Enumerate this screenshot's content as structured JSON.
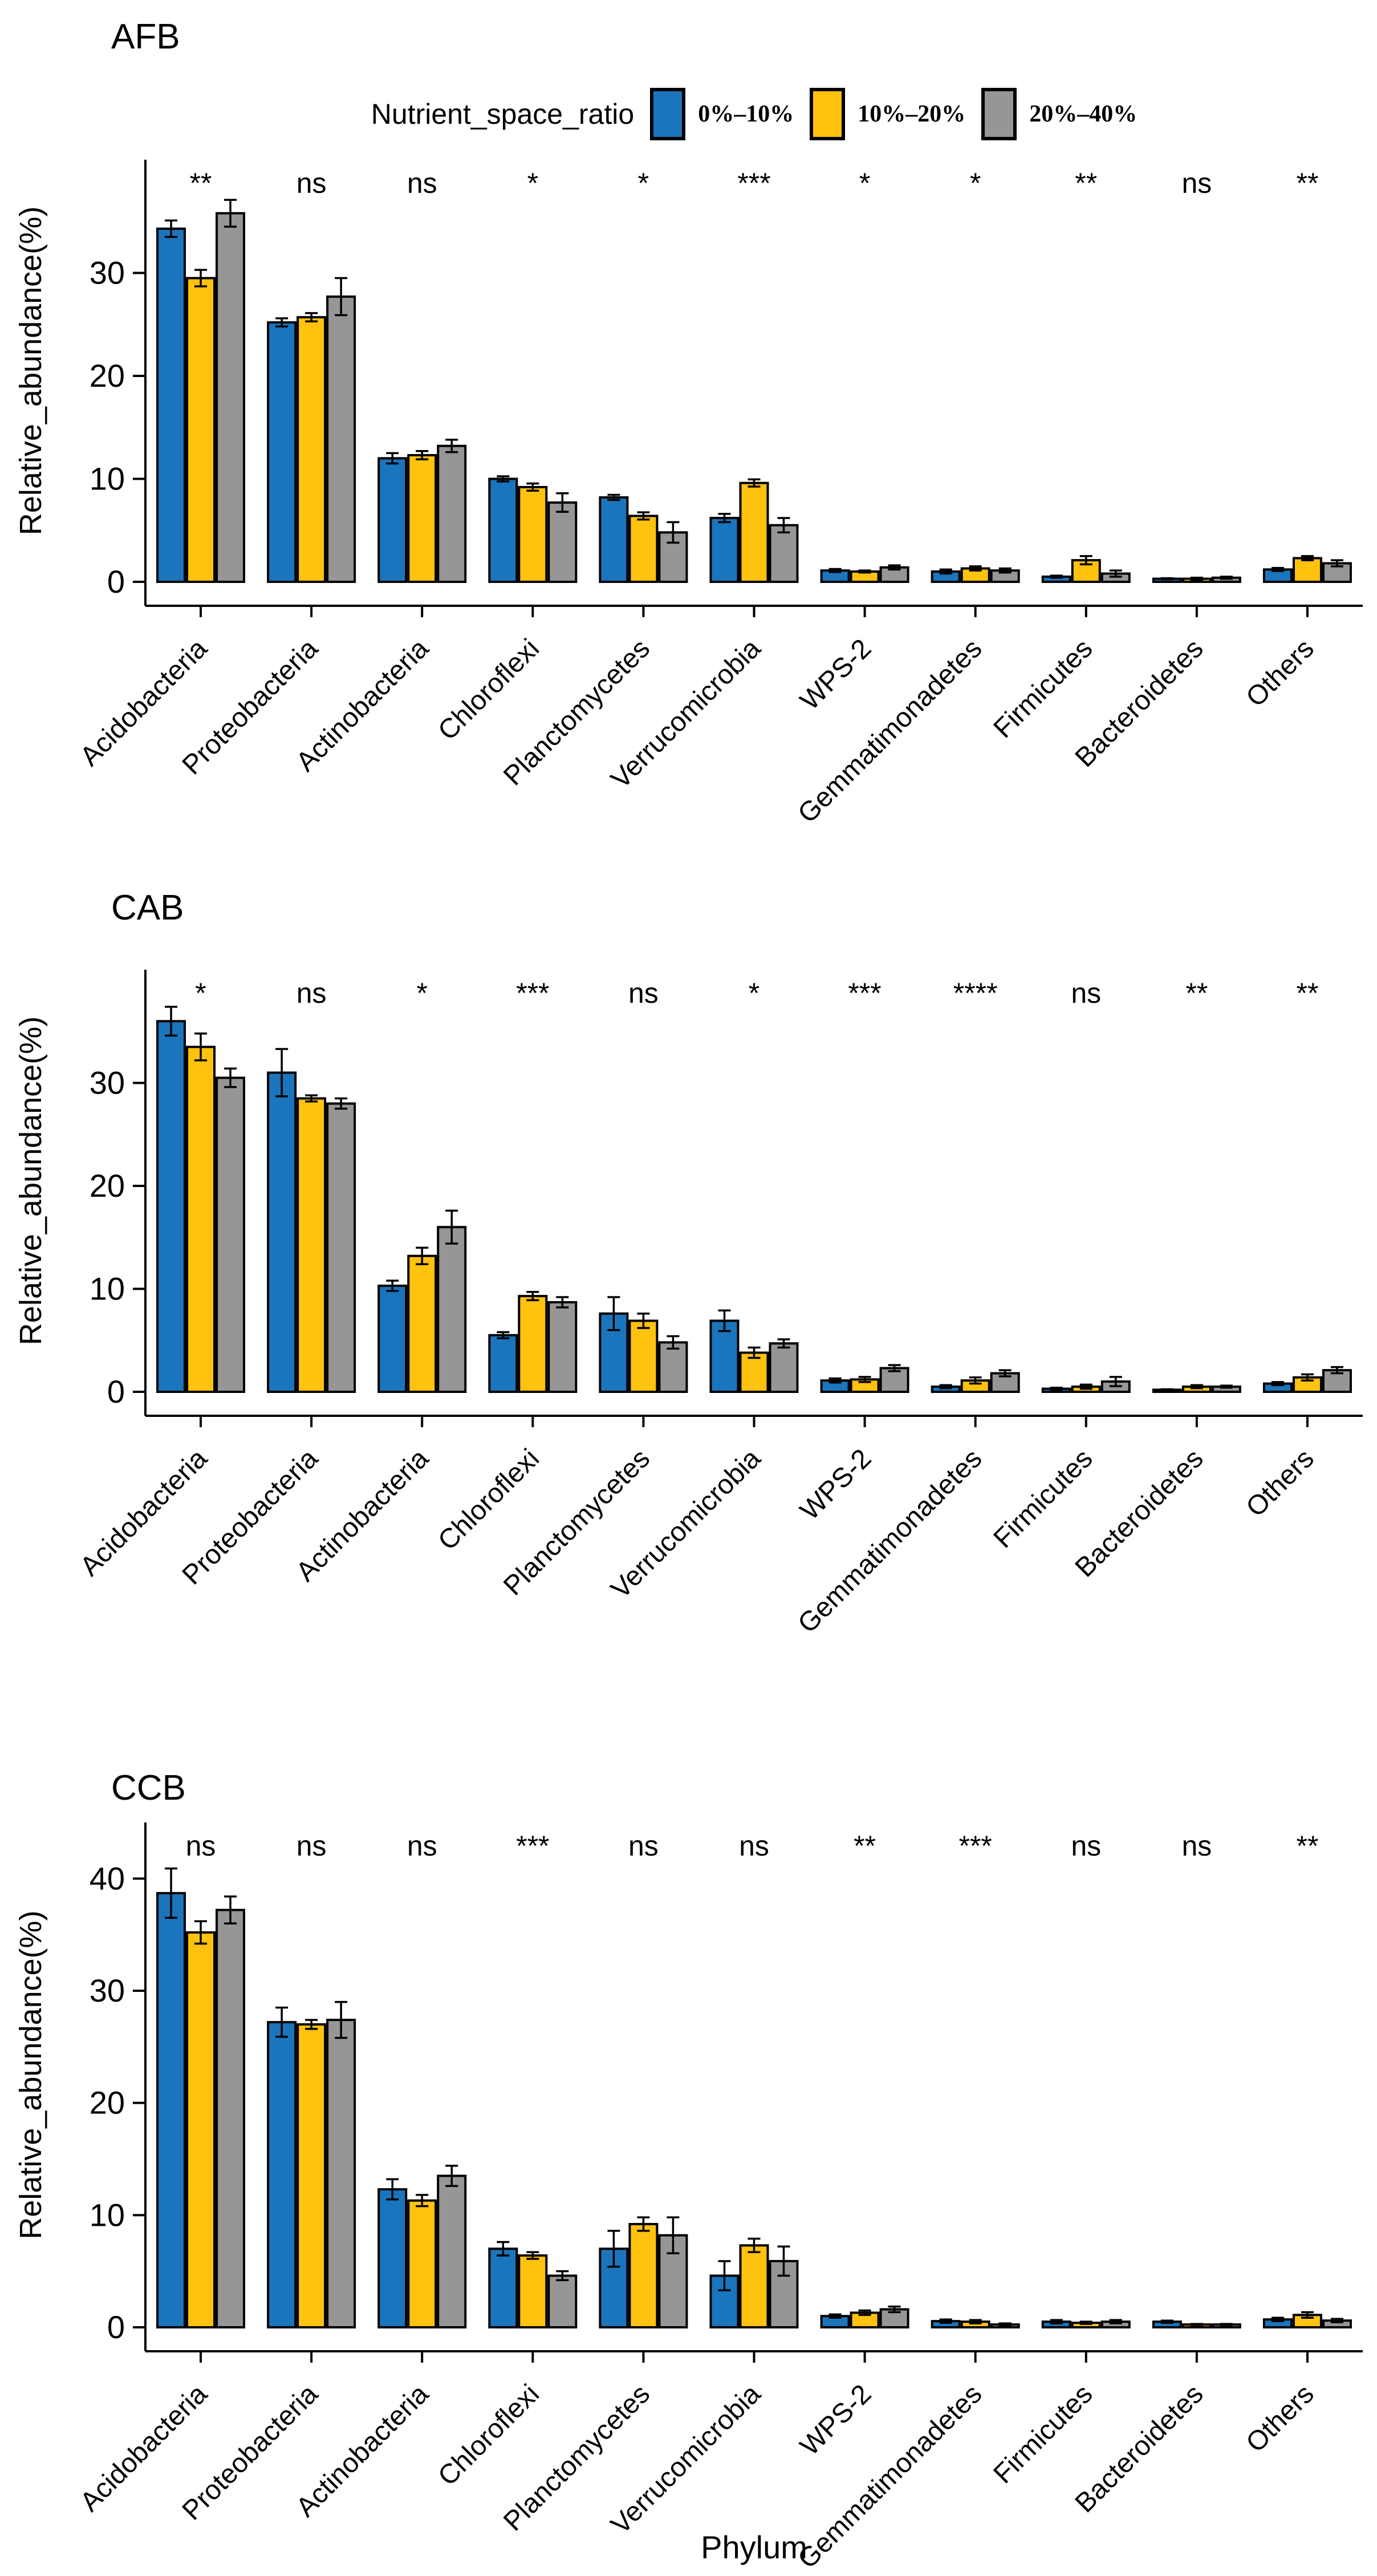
{
  "legend": {
    "title": "Nutrient_space_ratio",
    "items": [
      {
        "label": "0%–10%",
        "color": "#1B75BC"
      },
      {
        "label": "10%–20%",
        "color": "#FFC20E"
      },
      {
        "label": "20%–40%",
        "color": "#969696"
      }
    ]
  },
  "axis": {
    "y_label": "Relative_abundance(%)",
    "x_label": "Phylum"
  },
  "colors": {
    "bar_outline": "#000000",
    "blue": "#1B75BC",
    "yellow": "#FFC20E",
    "gray": "#969696"
  },
  "chart_data": [
    {
      "type": "bar",
      "title": "AFB",
      "ylabel": "Relative_abundance(%)",
      "ylim": [
        0,
        41
      ],
      "yticks": [
        0,
        10,
        20,
        30
      ],
      "grid": false,
      "legend_position": "top",
      "categories": [
        "Acidobacteria",
        "Proteobacteria",
        "Actinobacteria",
        "Chloroflexi",
        "Planctomycetes",
        "Verrucomicrobia",
        "WPS-2",
        "Gemmatimonadetes",
        "Firmicutes",
        "Bacteroidetes",
        "Others"
      ],
      "significance": [
        "**",
        "ns",
        "ns",
        "*",
        "*",
        "***",
        "*",
        "*",
        "**",
        "ns",
        "**"
      ],
      "series": [
        {
          "name": "0%–10%",
          "color": "#1B75BC",
          "values": [
            34.3,
            25.2,
            12.0,
            10.0,
            8.2,
            6.2,
            1.1,
            1.0,
            0.5,
            0.3,
            1.2
          ],
          "errors": [
            0.8,
            0.4,
            0.5,
            0.25,
            0.25,
            0.4,
            0.15,
            0.2,
            0.1,
            0.05,
            0.15
          ]
        },
        {
          "name": "10%–20%",
          "color": "#FFC20E",
          "values": [
            29.5,
            25.7,
            12.3,
            9.2,
            6.4,
            9.6,
            1.0,
            1.3,
            2.1,
            0.3,
            2.3
          ],
          "errors": [
            0.8,
            0.4,
            0.4,
            0.35,
            0.35,
            0.35,
            0.1,
            0.2,
            0.4,
            0.1,
            0.2
          ]
        },
        {
          "name": "20%–40%",
          "color": "#969696",
          "values": [
            35.8,
            27.7,
            13.2,
            7.7,
            4.8,
            5.5,
            1.4,
            1.1,
            0.8,
            0.4,
            1.8
          ],
          "errors": [
            1.3,
            1.8,
            0.6,
            0.9,
            1.0,
            0.7,
            0.2,
            0.2,
            0.3,
            0.1,
            0.3
          ]
        }
      ]
    },
    {
      "type": "bar",
      "title": "CAB",
      "ylabel": "Relative_abundance(%)",
      "ylim": [
        0,
        41
      ],
      "yticks": [
        0,
        10,
        20,
        30
      ],
      "grid": false,
      "categories": [
        "Acidobacteria",
        "Proteobacteria",
        "Actinobacteria",
        "Chloroflexi",
        "Planctomycetes",
        "Verrucomicrobia",
        "WPS-2",
        "Gemmatimonadetes",
        "Firmicutes",
        "Bacteroidetes",
        "Others"
      ],
      "significance": [
        "*",
        "ns",
        "*",
        "***",
        "ns",
        "*",
        "***",
        "****",
        "ns",
        "**",
        "**"
      ],
      "series": [
        {
          "name": "0%–10%",
          "color": "#1B75BC",
          "values": [
            36.0,
            31.0,
            10.3,
            5.5,
            7.6,
            6.9,
            1.1,
            0.5,
            0.3,
            0.2,
            0.8
          ],
          "errors": [
            1.4,
            2.3,
            0.5,
            0.3,
            1.6,
            1.0,
            0.2,
            0.15,
            0.1,
            0.05,
            0.15
          ]
        },
        {
          "name": "10%–20%",
          "color": "#FFC20E",
          "values": [
            33.5,
            28.5,
            13.2,
            9.3,
            6.9,
            3.8,
            1.2,
            1.1,
            0.5,
            0.5,
            1.4
          ],
          "errors": [
            1.3,
            0.3,
            0.8,
            0.4,
            0.7,
            0.5,
            0.25,
            0.3,
            0.2,
            0.15,
            0.3
          ]
        },
        {
          "name": "20%–40%",
          "color": "#969696",
          "values": [
            30.5,
            28.0,
            16.0,
            8.7,
            4.8,
            4.7,
            2.3,
            1.8,
            1.0,
            0.5,
            2.1
          ],
          "errors": [
            0.9,
            0.5,
            1.6,
            0.5,
            0.6,
            0.4,
            0.3,
            0.3,
            0.45,
            0.1,
            0.3
          ]
        }
      ]
    },
    {
      "type": "bar",
      "title": "CCB",
      "ylabel": "Relative_abundance(%)",
      "xlabel": "Phylum",
      "ylim": [
        0,
        45
      ],
      "yticks": [
        0,
        10,
        20,
        30,
        40
      ],
      "grid": false,
      "categories": [
        "Acidobacteria",
        "Proteobacteria",
        "Actinobacteria",
        "Chloroflexi",
        "Planctomycetes",
        "Verrucomicrobia",
        "WPS-2",
        "Gemmatimonadetes",
        "Firmicutes",
        "Bacteroidetes",
        "Others"
      ],
      "significance": [
        "ns",
        "ns",
        "ns",
        "***",
        "ns",
        "ns",
        "**",
        "***",
        "ns",
        "ns",
        "**"
      ],
      "series": [
        {
          "name": "0%–10%",
          "color": "#1B75BC",
          "values": [
            38.7,
            27.2,
            12.3,
            7.0,
            7.0,
            4.6,
            1.0,
            0.55,
            0.5,
            0.5,
            0.7
          ],
          "errors": [
            2.2,
            1.3,
            0.9,
            0.6,
            1.6,
            1.3,
            0.15,
            0.15,
            0.15,
            0.1,
            0.15
          ]
        },
        {
          "name": "10%–20%",
          "color": "#FFC20E",
          "values": [
            35.2,
            27.0,
            11.3,
            6.4,
            9.2,
            7.3,
            1.3,
            0.5,
            0.4,
            0.25,
            1.1
          ],
          "errors": [
            1.0,
            0.4,
            0.5,
            0.3,
            0.6,
            0.6,
            0.2,
            0.15,
            0.1,
            0.05,
            0.25
          ]
        },
        {
          "name": "20%–40%",
          "color": "#969696",
          "values": [
            37.2,
            27.4,
            13.5,
            4.6,
            8.2,
            5.9,
            1.6,
            0.25,
            0.5,
            0.25,
            0.6
          ],
          "errors": [
            1.2,
            1.6,
            0.9,
            0.4,
            1.6,
            1.3,
            0.25,
            0.1,
            0.15,
            0.05,
            0.15
          ]
        }
      ]
    }
  ]
}
